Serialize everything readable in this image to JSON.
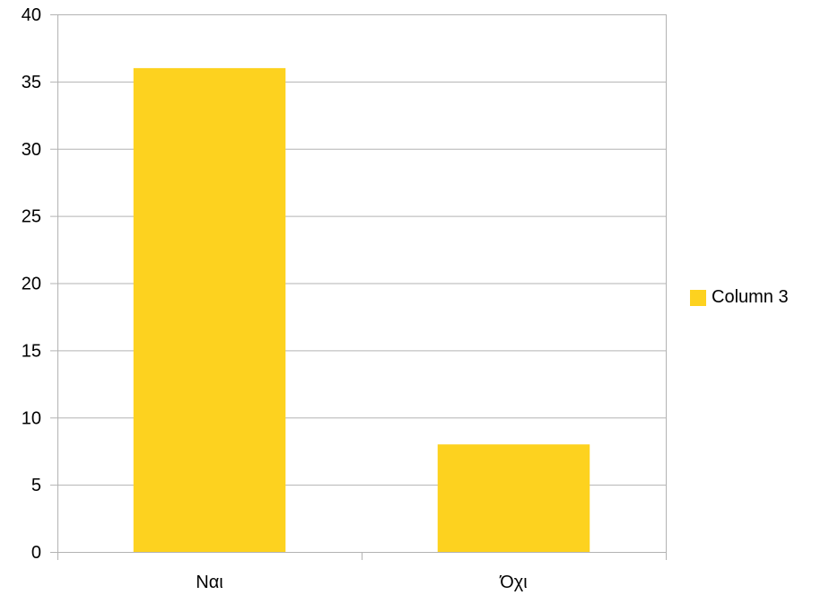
{
  "chart_data": {
    "type": "bar",
    "categories": [
      "Ναι",
      "Όχι"
    ],
    "series": [
      {
        "name": "Column 3",
        "values": [
          36,
          8
        ],
        "color": "#FDD21F"
      }
    ],
    "ylim": [
      0,
      40
    ],
    "yticks": [
      0,
      5,
      10,
      15,
      20,
      25,
      30,
      35,
      40
    ],
    "grid": true,
    "legend_position": "right",
    "gridline_color": "#b3b3b3"
  }
}
